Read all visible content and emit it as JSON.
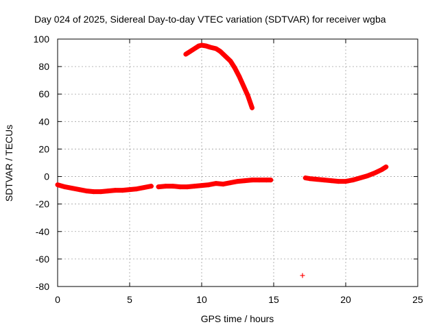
{
  "chart_data": {
    "type": "scatter",
    "title": "Day 024 of 2025, Sidereal Day-to-day VTEC variation (SDTVAR) for receiver wgba",
    "xlabel": "GPS time / hours",
    "ylabel": "SDTVAR / TECUs",
    "xlim": [
      0,
      25
    ],
    "ylim": [
      -80,
      100
    ],
    "xticks": [
      0,
      5,
      10,
      15,
      20,
      25
    ],
    "yticks": [
      -80,
      -60,
      -40,
      -20,
      0,
      20,
      40,
      60,
      80,
      100
    ],
    "xtick_labels": [
      "0",
      "5",
      "10",
      "15",
      "20",
      "25"
    ],
    "ytick_labels": [
      "-80",
      "-60",
      "-40",
      "-20",
      "0",
      "20",
      "40",
      "60",
      "80",
      "100"
    ],
    "grid": true,
    "marker": "+",
    "color": "#ff0000",
    "series": [
      {
        "name": "track-1",
        "x": [
          0.0,
          0.5,
          1.0,
          1.5,
          2.0,
          2.5,
          3.0,
          3.5,
          4.0,
          4.5,
          5.0,
          5.5,
          6.0,
          6.5
        ],
        "y": [
          -6.0,
          -7.5,
          -8.5,
          -9.5,
          -10.5,
          -11.0,
          -11.0,
          -10.5,
          -10.0,
          -10.0,
          -9.5,
          -9.0,
          -8.0,
          -7.0
        ]
      },
      {
        "name": "track-2",
        "x": [
          7.0,
          7.5,
          8.0,
          8.5,
          9.0,
          9.5,
          10.0,
          10.5,
          11.0,
          11.5,
          12.0,
          12.5,
          13.0,
          13.5,
          14.0,
          14.5,
          14.8
        ],
        "y": [
          -7.5,
          -7.0,
          -7.0,
          -7.5,
          -7.5,
          -7.0,
          -6.5,
          -6.0,
          -5.0,
          -5.5,
          -4.5,
          -3.5,
          -3.0,
          -2.5,
          -2.5,
          -2.5,
          -2.5
        ]
      },
      {
        "name": "track-3",
        "x": [
          8.9,
          9.2,
          9.5,
          9.8,
          10.0,
          10.3,
          10.6,
          11.0,
          11.3,
          11.6,
          12.0,
          12.3,
          12.6,
          12.9,
          13.2,
          13.5
        ],
        "y": [
          89,
          91,
          93,
          95,
          95.5,
          95,
          94,
          93,
          91,
          88,
          84,
          79,
          73,
          66,
          59,
          50
        ]
      },
      {
        "name": "track-4",
        "x": [
          17.2,
          17.5,
          18.0,
          18.5,
          19.0,
          19.5,
          20.0,
          20.5,
          21.0,
          21.5,
          22.0,
          22.5,
          22.8
        ],
        "y": [
          -1.0,
          -1.5,
          -2.0,
          -2.5,
          -3.0,
          -3.5,
          -3.5,
          -2.5,
          -1.0,
          0.5,
          2.5,
          5.0,
          7.0
        ]
      },
      {
        "name": "outlier",
        "x": [
          17.0
        ],
        "y": [
          -72.0
        ]
      }
    ]
  }
}
